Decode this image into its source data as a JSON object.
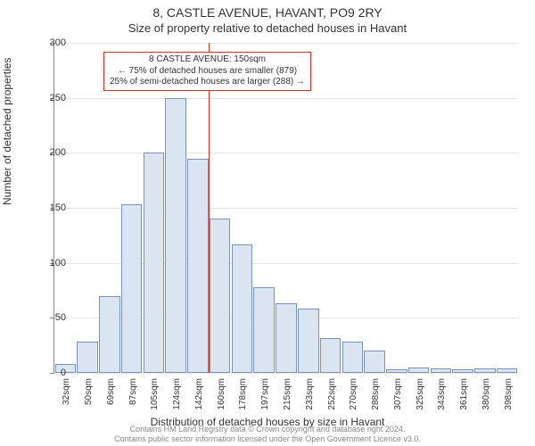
{
  "title": "8, CASTLE AVENUE, HAVANT, PO9 2RY",
  "subtitle": "Size of property relative to detached houses in Havant",
  "ylabel": "Number of detached properties",
  "xlabel": "Distribution of detached houses by size in Havant",
  "footer_line1": "Contains HM Land Registry data © Crown copyright and database right 2024.",
  "footer_line2": "Contains public sector information licensed under the Open Government Licence v3.0.",
  "chart": {
    "type": "bar",
    "ylim": [
      0,
      300
    ],
    "yticks": [
      0,
      50,
      100,
      150,
      200,
      250,
      300
    ],
    "xlabels": [
      "32sqm",
      "50sqm",
      "69sqm",
      "87sqm",
      "105sqm",
      "124sqm",
      "142sqm",
      "160sqm",
      "178sqm",
      "197sqm",
      "215sqm",
      "233sqm",
      "252sqm",
      "270sqm",
      "288sqm",
      "307sqm",
      "325sqm",
      "343sqm",
      "361sqm",
      "380sqm",
      "398sqm"
    ],
    "values": [
      8,
      28,
      70,
      153,
      200,
      250,
      195,
      140,
      117,
      78,
      63,
      58,
      32,
      28,
      20,
      3,
      5,
      4,
      3,
      4,
      4
    ],
    "bar_fill": "#dbe5f1",
    "bar_border": "#7a93b8",
    "grid_color": "#e5e5e5",
    "axis_color": "#888888",
    "background": "#ffffff",
    "label_fontsize": 12,
    "tick_fontsize": 10,
    "reference_line": {
      "index_after": 7,
      "fraction": 0.0,
      "color": "#cc3333"
    },
    "annotation": {
      "line1": "8 CASTLE AVENUE: 150sqm",
      "line2": "← 75% of detached houses are smaller (879)",
      "line3": "25% of semi-detached houses are larger (288) →",
      "border_color": "#cc3333",
      "background": "#ffffff",
      "fontsize": 10
    }
  }
}
